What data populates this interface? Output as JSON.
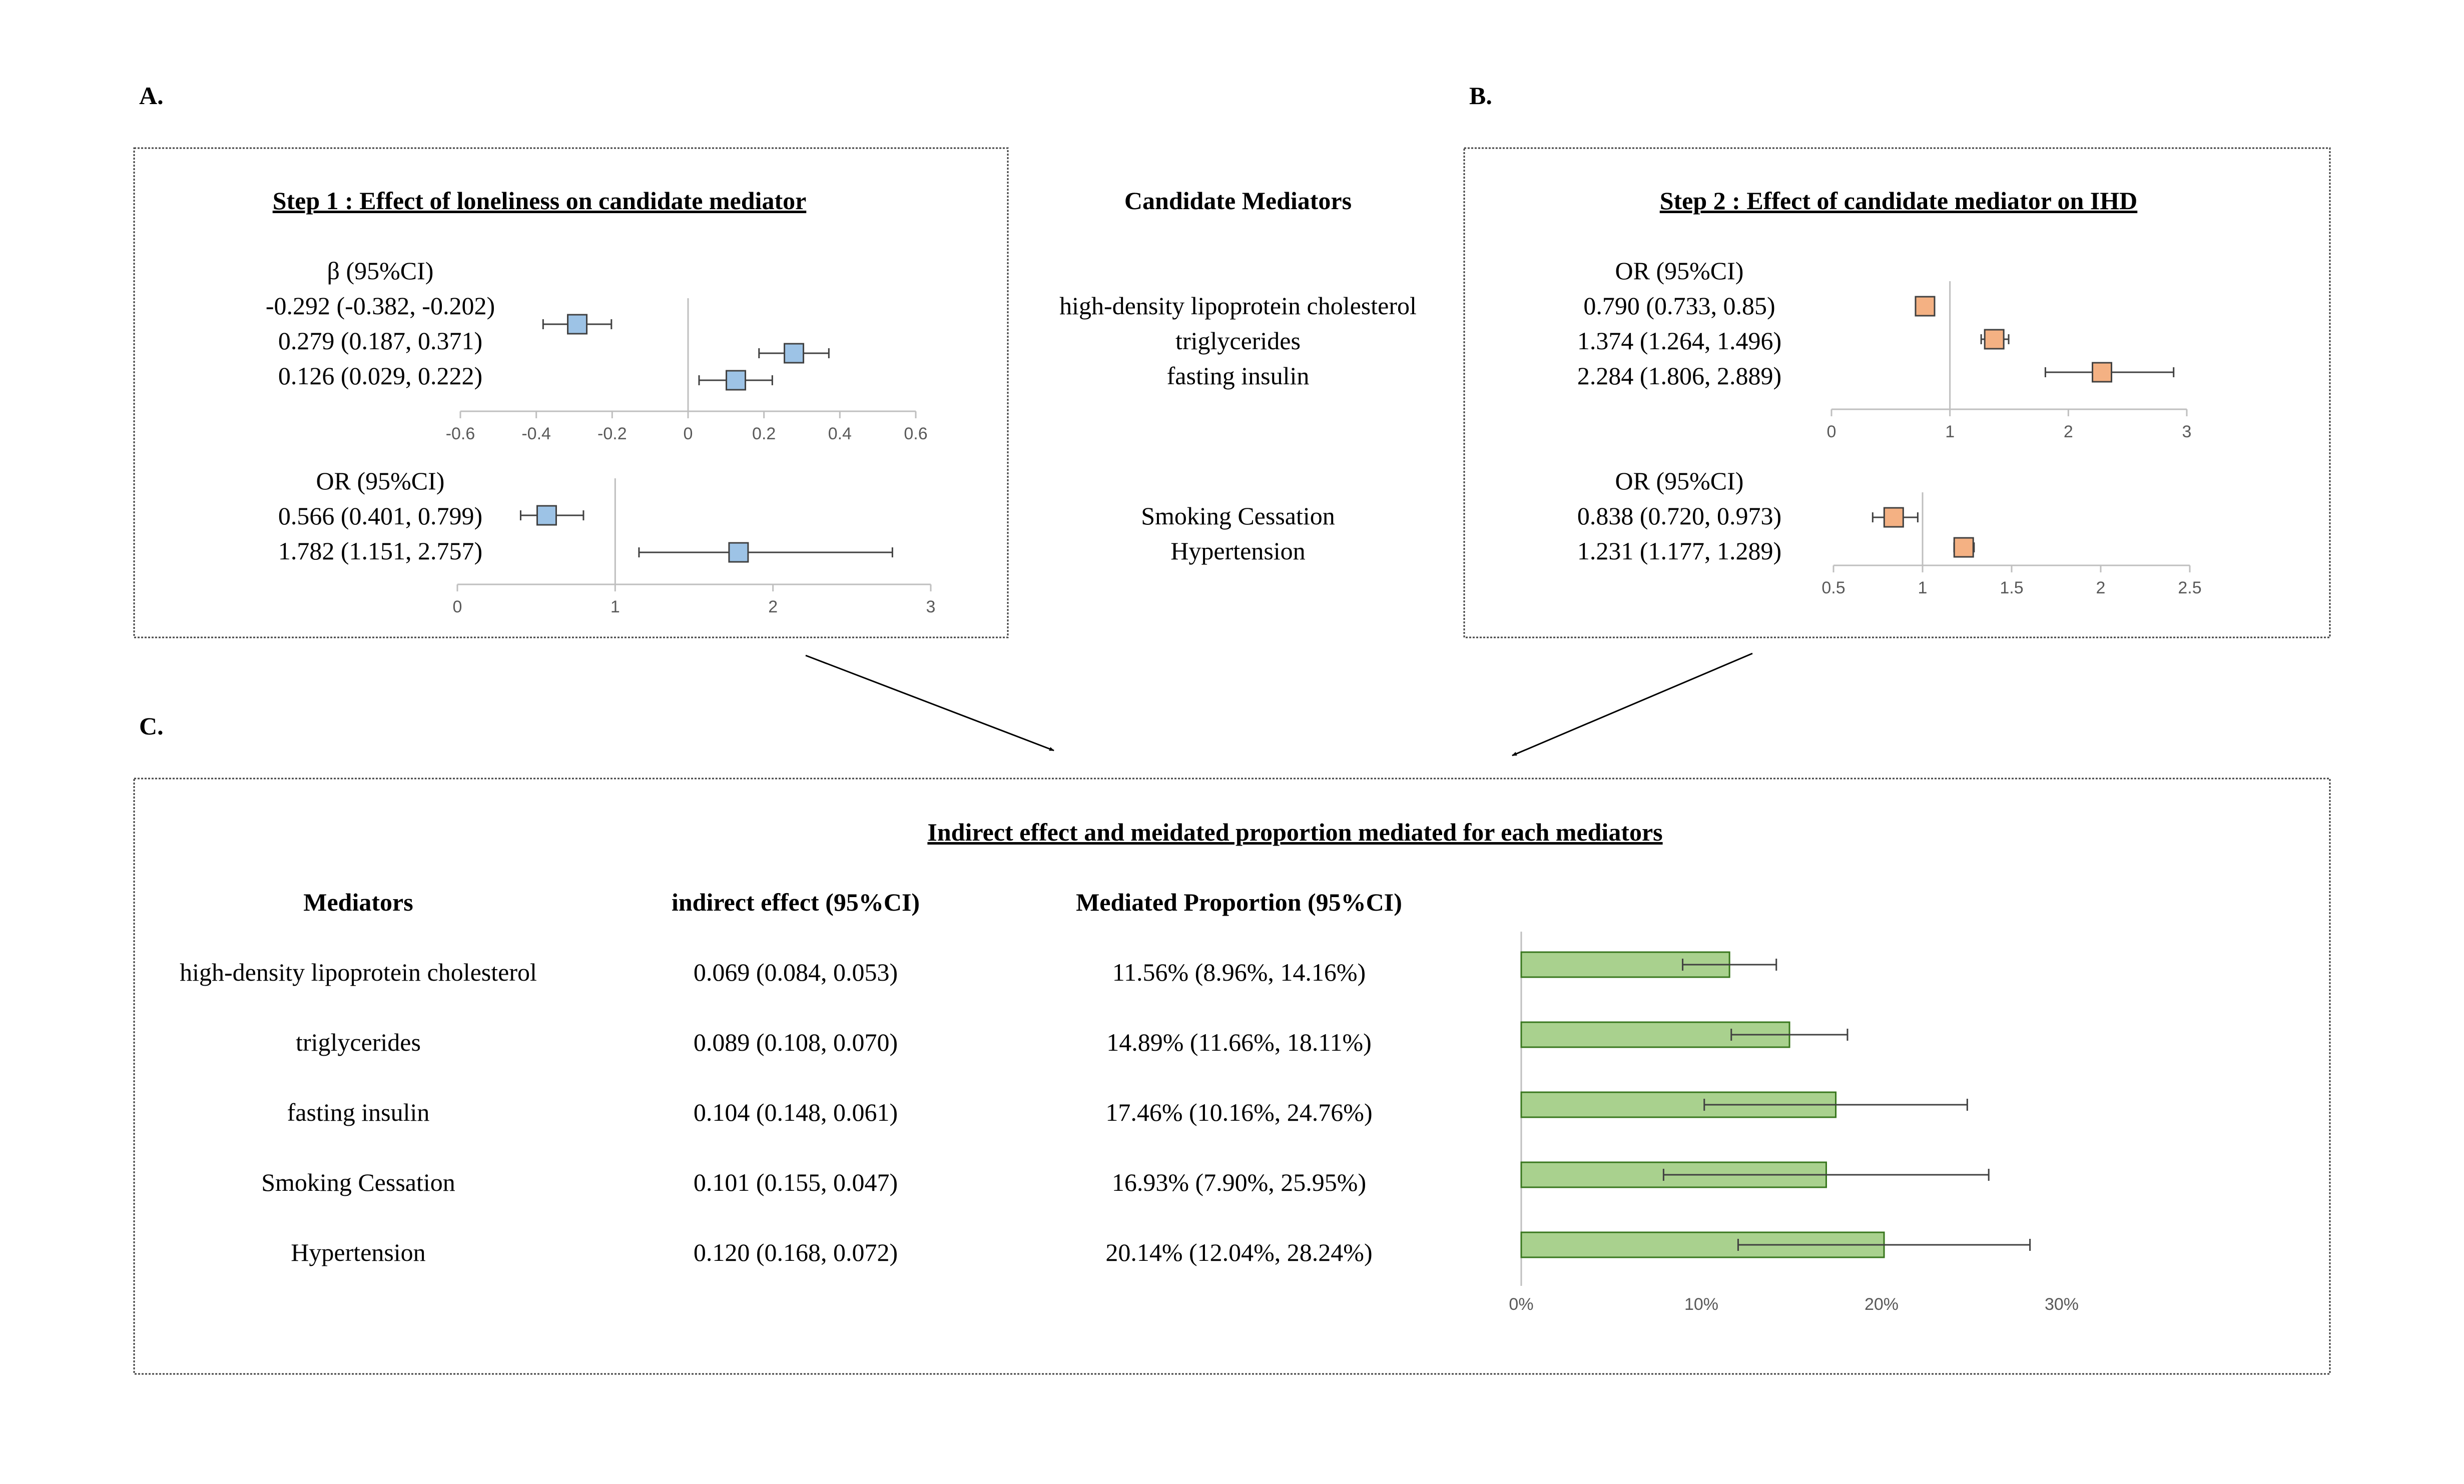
{
  "panel_labels": {
    "a": "A.",
    "b": "B.",
    "c": "C."
  },
  "center": {
    "title": "Candidate Mediators",
    "group1": [
      "high-density lipoprotein cholesterol",
      "triglycerides",
      "fasting insulin"
    ],
    "group2": [
      "Smoking Cessation",
      "Hypertension"
    ]
  },
  "table": {
    "headers": {
      "mediators": "Mediators",
      "indirect": "indirect effect (95%CI)",
      "proportion": "Mediated Proportion (95%CI)"
    },
    "rows": [
      {
        "mediator": "high-density lipoprotein cholesterol",
        "indirect": "0.069 (0.084, 0.053)",
        "proportion": "11.56% (8.96%, 14.16%)"
      },
      {
        "mediator": "triglycerides",
        "indirect": "0.089 (0.108, 0.070)",
        "proportion": "14.89% (11.66%, 18.11%)"
      },
      {
        "mediator": "fasting insulin",
        "indirect": "0.104 (0.148, 0.061)",
        "proportion": "17.46% (10.16%, 24.76%)"
      },
      {
        "mediator": "Smoking Cessation",
        "indirect": "0.101 (0.155, 0.047)",
        "proportion": "16.93% (7.90%, 25.95%)"
      },
      {
        "mediator": "Hypertension",
        "indirect": "0.120 (0.168, 0.072)",
        "proportion": "20.14% (12.04%, 28.24%)"
      }
    ]
  },
  "colors": {
    "blue": "#9dc3e6",
    "orange": "#f4b183",
    "green": "#a9d18e",
    "marker_stroke": "#404040",
    "bar_stroke": "#38761d"
  },
  "chart_data": [
    {
      "id": "step1_beta",
      "type": "forest",
      "title": "Step 1 : Effect of loneliness on candidate mediator",
      "stat_label": "β (95%CI)",
      "labels": [
        "-0.292 (-0.382, -0.202)",
        "0.279 (0.187, 0.371)",
        "0.126 (0.029, 0.222)"
      ],
      "estimates": [
        -0.292,
        0.279,
        0.126
      ],
      "lower": [
        -0.382,
        0.187,
        0.029
      ],
      "upper": [
        -0.202,
        0.371,
        0.222
      ],
      "xlim": [
        -0.6,
        0.6
      ],
      "ref": 0,
      "ticks": [
        -0.6,
        -0.4,
        -0.2,
        0,
        0.2,
        0.4,
        0.6
      ],
      "tick_labels": [
        "-0.6",
        "-0.4",
        "-0.2",
        "0",
        "0.2",
        "0.4",
        "0.6"
      ],
      "color": "#9dc3e6"
    },
    {
      "id": "step1_or",
      "type": "forest",
      "title": "",
      "stat_label": "OR (95%CI)",
      "labels": [
        "0.566 (0.401, 0.799)",
        "1.782 (1.151, 2.757)"
      ],
      "estimates": [
        0.566,
        1.782
      ],
      "lower": [
        0.401,
        1.151
      ],
      "upper": [
        0.799,
        2.757
      ],
      "xlim": [
        0,
        3
      ],
      "ref": 1,
      "ticks": [
        0,
        1,
        2,
        3
      ],
      "tick_labels": [
        "0",
        "1",
        "2",
        "3"
      ],
      "color": "#9dc3e6"
    },
    {
      "id": "step2_top",
      "type": "forest",
      "title": "Step 2 : Effect of candidate mediator on IHD",
      "stat_label": "OR (95%CI)",
      "labels": [
        "0.790 (0.733, 0.85)",
        "1.374 (1.264, 1.496)",
        "2.284 (1.806, 2.889)"
      ],
      "estimates": [
        0.79,
        1.374,
        2.284
      ],
      "lower": [
        0.733,
        1.264,
        1.806
      ],
      "upper": [
        0.85,
        1.496,
        2.889
      ],
      "xlim": [
        0,
        3
      ],
      "ref": 1,
      "ticks": [
        0,
        1,
        2,
        3
      ],
      "tick_labels": [
        "0",
        "1",
        "2",
        "3"
      ],
      "color": "#f4b183"
    },
    {
      "id": "step2_bottom",
      "type": "forest",
      "title": "",
      "stat_label": "OR (95%CI)",
      "labels": [
        "0.838 (0.720, 0.973)",
        "1.231 (1.177, 1.289)"
      ],
      "estimates": [
        0.838,
        1.231
      ],
      "lower": [
        0.72,
        1.177
      ],
      "upper": [
        0.973,
        1.289
      ],
      "xlim": [
        0.5,
        2.5
      ],
      "ref": 1,
      "ticks": [
        0.5,
        1,
        1.5,
        2,
        2.5
      ],
      "tick_labels": [
        "0.5",
        "1",
        "1.5",
        "2",
        "2.5"
      ],
      "color": "#f4b183"
    },
    {
      "id": "mediated_proportion",
      "type": "bar",
      "orientation": "horizontal",
      "title": "Indirect effect and meidated proportion mediated for each mediators",
      "categories": [
        "high-density lipoprotein cholesterol",
        "triglycerides",
        "fasting insulin",
        "Smoking Cessation",
        "Hypertension"
      ],
      "values": [
        11.56,
        14.89,
        17.46,
        16.93,
        20.14
      ],
      "lower": [
        8.96,
        11.66,
        10.16,
        7.9,
        12.04
      ],
      "upper": [
        14.16,
        18.11,
        24.76,
        25.95,
        28.24
      ],
      "xlim": [
        0,
        30
      ],
      "ticks": [
        0,
        10,
        20,
        30
      ],
      "tick_labels": [
        "0%",
        "10%",
        "20%",
        "30%"
      ],
      "color": "#a9d18e"
    }
  ]
}
